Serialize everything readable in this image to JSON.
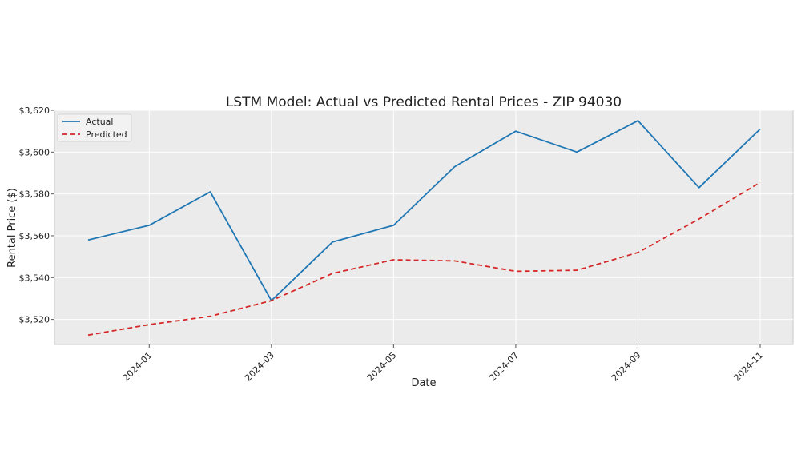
{
  "chart_data": {
    "type": "line",
    "title": "LSTM Model: Actual vs Predicted Rental Prices - ZIP 94030",
    "xlabel": "Date",
    "ylabel": "Rental Price ($)",
    "x": [
      "2023-12",
      "2024-01",
      "2024-02",
      "2024-03",
      "2024-04",
      "2024-05",
      "2024-06",
      "2024-07",
      "2024-08",
      "2024-09",
      "2024-10",
      "2024-11"
    ],
    "x_tick_labels": [
      "2024-01",
      "2024-03",
      "2024-05",
      "2024-07",
      "2024-09",
      "2024-11"
    ],
    "x_tick_positions": [
      1,
      3,
      5,
      7,
      9,
      11
    ],
    "y_tick_labels": [
      "$3,520",
      "$3,540",
      "$3,560",
      "$3,580",
      "$3,600",
      "$3,620"
    ],
    "y_ticks": [
      3520,
      3540,
      3560,
      3580,
      3600,
      3620
    ],
    "ylim": [
      3508,
      3620
    ],
    "grid": true,
    "legend_position": "top-left",
    "series": [
      {
        "name": "Actual",
        "color": "#1f77b4",
        "style": "solid",
        "values": [
          3558,
          3565,
          3581,
          3529,
          3557,
          3565,
          3593,
          3610,
          3600,
          3615,
          3583,
          3611
        ]
      },
      {
        "name": "Predicted",
        "color": "#d62728",
        "style": "dashed",
        "values": [
          3512.5,
          3517.5,
          3521.5,
          3529,
          3542,
          3548.5,
          3548,
          3543,
          3543.5,
          3552,
          3568,
          3585.5
        ]
      }
    ]
  }
}
